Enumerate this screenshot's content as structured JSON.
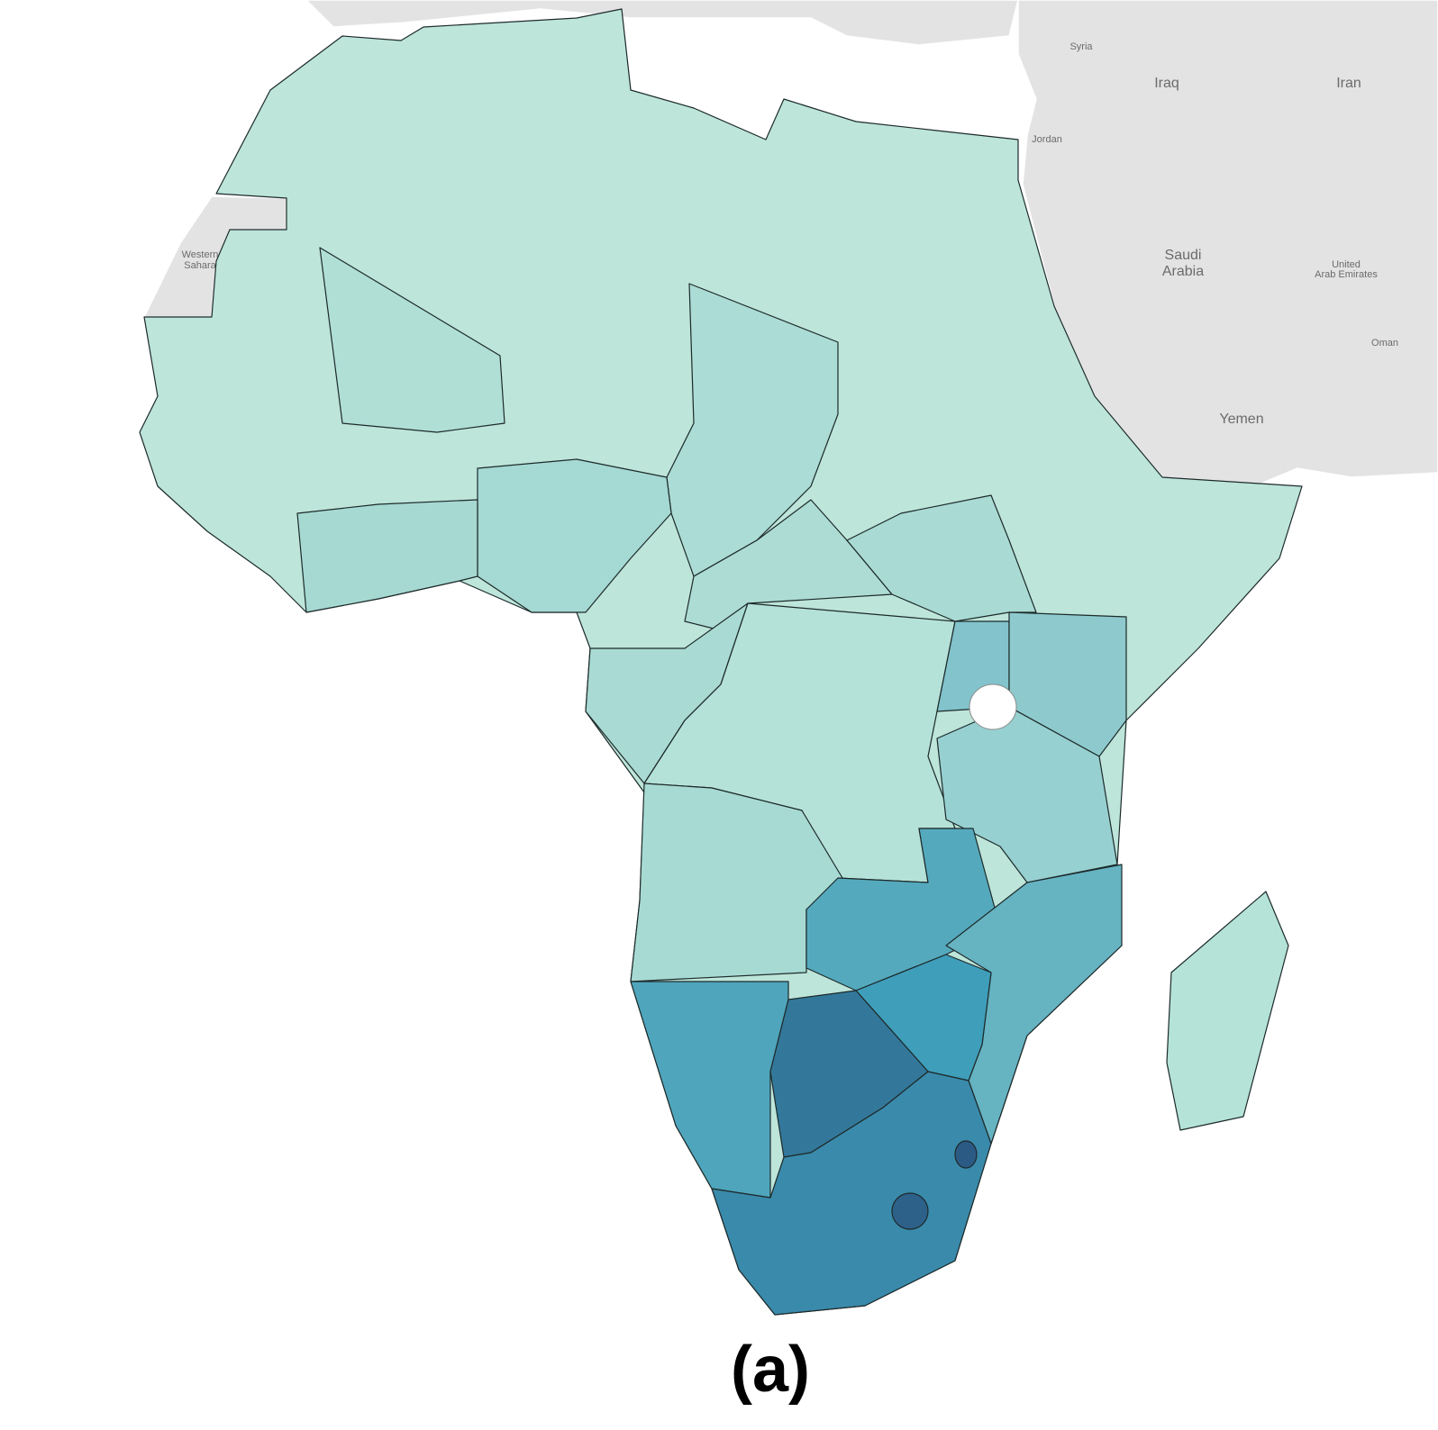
{
  "map": {
    "labels": [
      {
        "lines": [
          "Syria"
        ]
      },
      {
        "lines": [
          "Iraq"
        ]
      },
      {
        "lines": [
          "Iran"
        ]
      },
      {
        "lines": [
          "Jordan"
        ]
      },
      {
        "lines": [
          "Saudi",
          "Arabia"
        ]
      },
      {
        "lines": [
          "Western",
          "Sahara"
        ]
      },
      {
        "lines": [
          "United",
          "Arab Emirates"
        ]
      },
      {
        "lines": [
          "Oman"
        ]
      },
      {
        "lines": [
          "Yemen"
        ]
      }
    ]
  },
  "caption": "(a)"
}
